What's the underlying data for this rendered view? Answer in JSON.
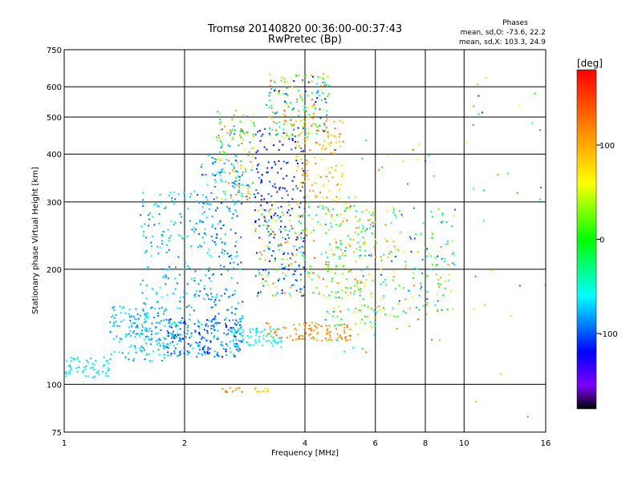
{
  "chart_data": {
    "type": "scatter",
    "title": "Tromsø 20140820 00:36:00-00:37:43",
    "subtitle": "RwPretec (Bp)",
    "stats": {
      "heading": "Phases",
      "line1": "mean, sd,O: -73.6, 22.2",
      "line2": "mean, sd,X: 103.3, 24.9"
    },
    "xlabel": "Frequency [MHz]",
    "ylabel": "Stationary phase Virtual Height [km]",
    "x_scale": "log",
    "y_scale": "log",
    "xlim": [
      1,
      16
    ],
    "ylim": [
      75,
      750
    ],
    "x_ticks": [
      1,
      2,
      4,
      6,
      8,
      10,
      16
    ],
    "x_tick_labels": [
      "1",
      "2",
      "4",
      "6",
      "8",
      "10",
      "16"
    ],
    "y_ticks": [
      75,
      100,
      200,
      300,
      400,
      500,
      600,
      750
    ],
    "y_tick_labels": [
      "75",
      "100",
      "200",
      "300",
      "400",
      "500",
      "600",
      "750"
    ],
    "grid": true,
    "colorbar": {
      "label": "[deg]",
      "range": [
        -180,
        180
      ],
      "ticks": [
        100,
        0,
        -100
      ],
      "tick_labels": [
        "100",
        "0",
        "-100"
      ],
      "stops": [
        {
          "value": -180,
          "color": "#000000"
        },
        {
          "value": -155,
          "color": "#7f00ff"
        },
        {
          "value": -120,
          "color": "#0000ff"
        },
        {
          "value": -60,
          "color": "#00ffff"
        },
        {
          "value": 0,
          "color": "#00ff00"
        },
        {
          "value": 60,
          "color": "#ffff00"
        },
        {
          "value": 120,
          "color": "#ff8000"
        },
        {
          "value": 180,
          "color": "#ff0000"
        }
      ]
    },
    "clusters": [
      {
        "f": [
          1.0,
          1.3
        ],
        "h": [
          104,
          118
        ],
        "phase": [
          -75,
          -55
        ],
        "n": 60
      },
      {
        "f": [
          1.3,
          1.8
        ],
        "h": [
          115,
          160
        ],
        "phase": [
          -90,
          -55
        ],
        "n": 170
      },
      {
        "f": [
          1.55,
          2.2
        ],
        "h": [
          130,
          320
        ],
        "phase": [
          -100,
          -50
        ],
        "n": 180
      },
      {
        "f": [
          1.8,
          2.8
        ],
        "h": [
          118,
          150
        ],
        "phase": [
          -120,
          -60
        ],
        "n": 240
      },
      {
        "f": [
          2.2,
          2.8
        ],
        "h": [
          150,
          400
        ],
        "phase": [
          -110,
          -55
        ],
        "n": 200
      },
      {
        "f": [
          2.4,
          3.0
        ],
        "h": [
          300,
          520
        ],
        "phase": [
          -100,
          130
        ],
        "n": 130
      },
      {
        "f": [
          2.6,
          3.5
        ],
        "h": [
          125,
          140
        ],
        "phase": [
          -70,
          -55
        ],
        "n": 80
      },
      {
        "f": [
          3.0,
          4.0
        ],
        "h": [
          170,
          470
        ],
        "phase": [
          -135,
          -90
        ],
        "n": 200
      },
      {
        "f": [
          3.2,
          4.6
        ],
        "h": [
          440,
          650
        ],
        "phase": [
          -130,
          150
        ],
        "n": 170
      },
      {
        "f": [
          3.8,
          5.0
        ],
        "h": [
          300,
          500
        ],
        "phase": [
          60,
          130
        ],
        "n": 120
      },
      {
        "f": [
          3.0,
          5.5
        ],
        "h": [
          170,
          300
        ],
        "phase": [
          -80,
          150
        ],
        "n": 220
      },
      {
        "f": [
          3.2,
          5.2
        ],
        "h": [
          130,
          145
        ],
        "phase": [
          100,
          130
        ],
        "n": 100
      },
      {
        "f": [
          4.5,
          6.0
        ],
        "h": [
          140,
          290
        ],
        "phase": [
          -100,
          130
        ],
        "n": 110
      },
      {
        "f": [
          5.5,
          9.5
        ],
        "h": [
          150,
          290
        ],
        "phase": [
          -110,
          120
        ],
        "n": 170
      },
      {
        "f": [
          4.5,
          9.0
        ],
        "h": [
          120,
          440
        ],
        "phase": [
          -110,
          150
        ],
        "n": 60
      },
      {
        "f": [
          2.4,
          2.8
        ],
        "h": [
          95,
          98
        ],
        "phase": [
          110,
          130
        ],
        "n": 10
      },
      {
        "f": [
          3.0,
          3.3
        ],
        "h": [
          95,
          98
        ],
        "phase": [
          60,
          110
        ],
        "n": 12
      },
      {
        "f": [
          10.0,
          16.0
        ],
        "h": [
          78,
          650
        ],
        "phase": [
          -110,
          150
        ],
        "n": 30
      }
    ]
  }
}
